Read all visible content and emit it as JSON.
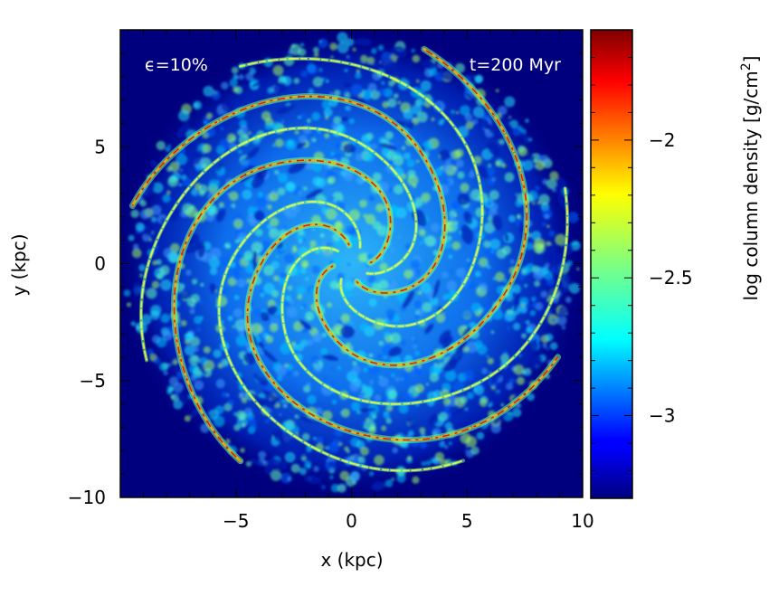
{
  "chart_data": {
    "type": "heatmap",
    "title": "",
    "xlabel": "x (kpc)",
    "ylabel": "y (kpc)",
    "xlim": [
      -10,
      10
    ],
    "ylim": [
      -10,
      10
    ],
    "x_ticks": [
      -5,
      0,
      5,
      10
    ],
    "y_ticks": [
      -10,
      -5,
      0,
      5
    ],
    "x_tick_labels": [
      "−5",
      "0",
      "5",
      "10"
    ],
    "y_tick_labels": [
      "−10",
      "−5",
      "0",
      "5"
    ],
    "colorbar": {
      "label": "log column density [g/cm²]",
      "range": [
        -3.3,
        -1.6
      ],
      "ticks": [
        -3,
        -2.5,
        -2
      ],
      "tick_labels": [
        "−3",
        "−2.5",
        "−2"
      ],
      "colormap": "jet"
    },
    "annotations": [
      {
        "text": "ϵ=10%",
        "position": "top-left"
      },
      {
        "text": "t=200 Myr",
        "position": "top-right"
      }
    ],
    "description_values": {
      "background_value": -3.3,
      "arm_peak_value": -1.7,
      "disk_radius_kpc": 10
    }
  },
  "colors": {
    "background": "#00007f",
    "annotation_text": "#ffffff"
  }
}
